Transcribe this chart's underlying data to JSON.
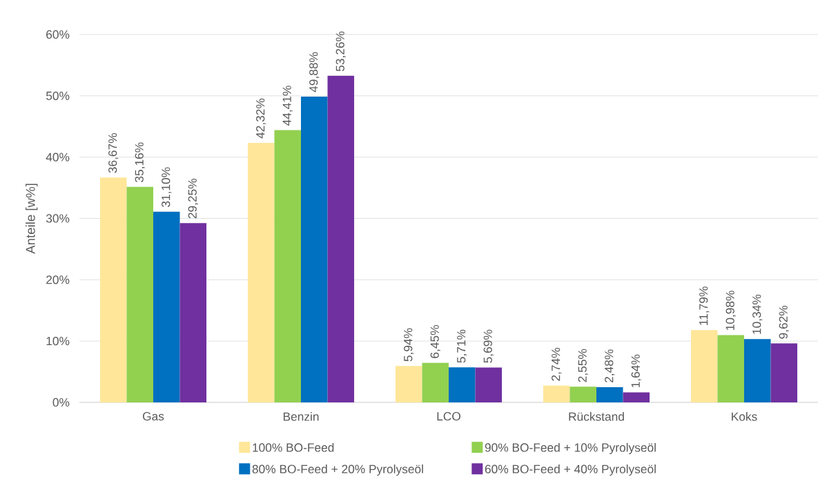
{
  "chart_data": {
    "type": "bar",
    "ylabel": "Anteile [w%]",
    "categories": [
      "Gas",
      "Benzin",
      "LCO",
      "Rückstand",
      "Koks"
    ],
    "series": [
      {
        "name": "100% BO-Feed",
        "color": "#ffe699",
        "values": [
          36.67,
          42.32,
          5.94,
          2.74,
          11.79
        ],
        "value_labels": [
          "36,67%",
          "42,32%",
          "5,94%",
          "2,74%",
          "11,79%"
        ]
      },
      {
        "name": "90% BO-Feed + 10% Pyrolyseöl",
        "color": "#92d050",
        "values": [
          35.16,
          44.41,
          6.45,
          2.55,
          10.98
        ],
        "value_labels": [
          "35,16%",
          "44,41%",
          "6,45%",
          "2,55%",
          "10,98%"
        ]
      },
      {
        "name": "80% BO-Feed + 20% Pyrolyseöl",
        "color": "#0070c0",
        "values": [
          31.1,
          49.88,
          5.71,
          2.48,
          10.34
        ],
        "value_labels": [
          "31,10%",
          "49,88%",
          "5,71%",
          "2,48%",
          "10,34%"
        ]
      },
      {
        "name": "60% BO-Feed + 40% Pyrolyseöl",
        "color": "#7030a0",
        "values": [
          29.25,
          53.26,
          5.69,
          1.64,
          9.62
        ],
        "value_labels": [
          "29,25%",
          "53,26%",
          "5,69%",
          "1,64%",
          "9,62%"
        ]
      }
    ],
    "ylim": [
      0,
      60
    ],
    "yticks": [
      {
        "value": 0,
        "label": "0%"
      },
      {
        "value": 10,
        "label": "10%"
      },
      {
        "value": 20,
        "label": "20%"
      },
      {
        "value": 30,
        "label": "30%"
      },
      {
        "value": 40,
        "label": "40%"
      },
      {
        "value": 50,
        "label": "50%"
      },
      {
        "value": 60,
        "label": "60%"
      }
    ],
    "grid": "y",
    "legend": "bottom"
  }
}
